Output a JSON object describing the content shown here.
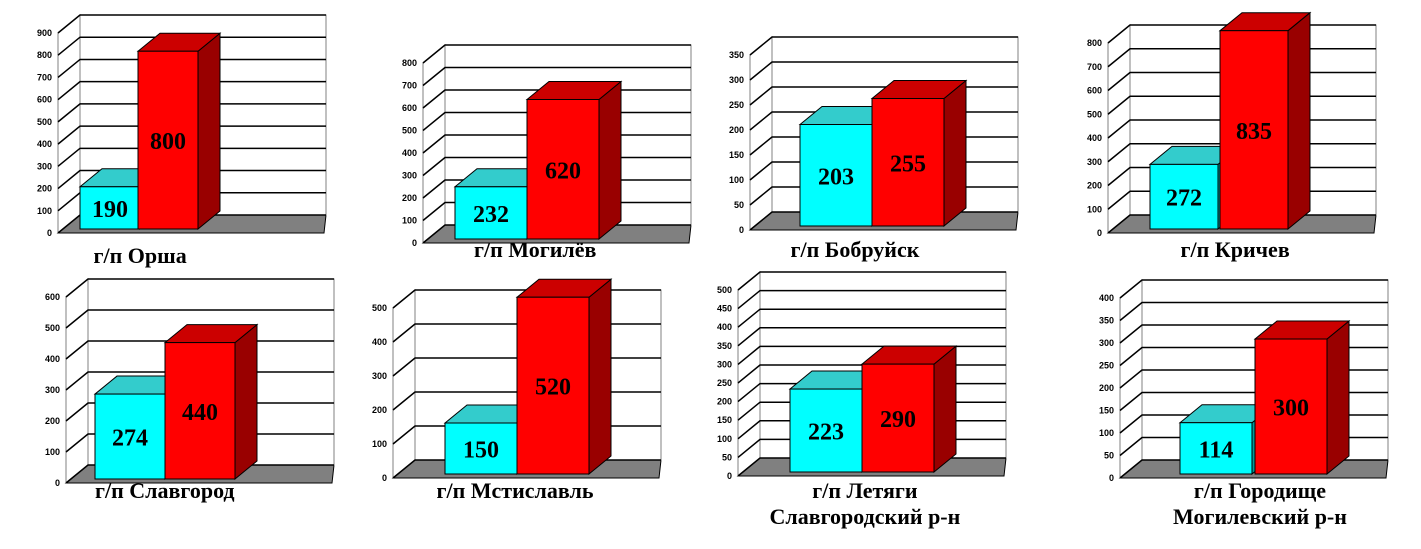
{
  "colors": {
    "series_front": [
      "#00ffff",
      "#ff0000"
    ],
    "series_top": [
      "#33cccc",
      "#cc0000"
    ],
    "series_side": [
      "#009999",
      "#990000"
    ],
    "floor": "#808080",
    "grid": "#000000"
  },
  "chart_data": [
    {
      "type": "bar",
      "caption": [
        "г/п Орша"
      ],
      "ylim": [
        0,
        900
      ],
      "ticks": [
        "0",
        "100",
        "200",
        "300",
        "400",
        "500",
        "600",
        "700",
        "800",
        "900"
      ],
      "values": [
        190,
        800
      ],
      "labels": [
        "190",
        "800"
      ]
    },
    {
      "type": "bar",
      "caption": [
        "г/п Могилёв"
      ],
      "ylim": [
        0,
        800
      ],
      "ticks": [
        "0",
        "100",
        "200",
        "300",
        "400",
        "500",
        "600",
        "700",
        "800"
      ],
      "values": [
        232,
        620
      ],
      "labels": [
        "232",
        "620"
      ]
    },
    {
      "type": "bar",
      "caption": [
        "г/п Бобруйск"
      ],
      "ylim": [
        0,
        350
      ],
      "ticks": [
        "0",
        "50",
        "100",
        "150",
        "200",
        "250",
        "300",
        "350"
      ],
      "values": [
        203,
        255
      ],
      "labels": [
        "203",
        "255"
      ]
    },
    {
      "type": "bar",
      "caption": [
        "г/п Кричев"
      ],
      "ylim": [
        0,
        800
      ],
      "ticks": [
        "0",
        "100",
        "200",
        "300",
        "400",
        "500",
        "600",
        "700",
        "800"
      ],
      "values": [
        272,
        835
      ],
      "labels": [
        "272",
        "835"
      ]
    },
    {
      "type": "bar",
      "caption": [
        "г/п Славгород"
      ],
      "ylim": [
        0,
        600
      ],
      "ticks": [
        "0",
        "100",
        "200",
        "300",
        "400",
        "500",
        "600"
      ],
      "values": [
        274,
        440
      ],
      "labels": [
        "274",
        "440"
      ]
    },
    {
      "type": "bar",
      "caption": [
        "г/п Мстиславль"
      ],
      "ylim": [
        0,
        500
      ],
      "ticks": [
        "0",
        "100",
        "200",
        "300",
        "400",
        "500"
      ],
      "values": [
        150,
        520
      ],
      "labels": [
        "150",
        "520"
      ]
    },
    {
      "type": "bar",
      "caption": [
        "г/п Летяги",
        "Славгородский р-н"
      ],
      "ylim": [
        0,
        500
      ],
      "ticks": [
        "0",
        "50",
        "100",
        "150",
        "200",
        "250",
        "300",
        "350",
        "400",
        "450",
        "500"
      ],
      "values": [
        223,
        290
      ],
      "labels": [
        "223",
        "290"
      ]
    },
    {
      "type": "bar",
      "caption": [
        "г/п Городище",
        "Могилевский р-н"
      ],
      "ylim": [
        0,
        400
      ],
      "ticks": [
        "0",
        "50",
        "100",
        "150",
        "200",
        "250",
        "300",
        "350",
        "400"
      ],
      "values": [
        114,
        300
      ],
      "labels": [
        "114",
        "300"
      ]
    }
  ]
}
